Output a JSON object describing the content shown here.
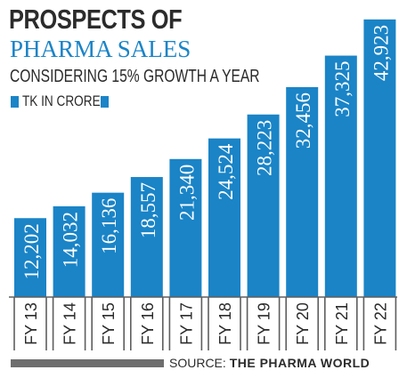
{
  "chart_data": {
    "type": "bar",
    "title": "PROSPECTS OF",
    "subtitle": "PHARMA SALES",
    "note": "CONSIDERING 15% GROWTH A YEAR",
    "legend": [
      "TK IN CRORE"
    ],
    "categories": [
      "FY 13",
      "FY 14",
      "FY 15",
      "FY 16",
      "FY 17",
      "FY 18",
      "FY 19",
      "FY 20",
      "FY 21",
      "FY 22"
    ],
    "values": [
      12202,
      14032,
      16136,
      18557,
      21340,
      24524,
      28223,
      32456,
      37325,
      42923
    ],
    "value_labels": [
      "12,202",
      "14,032",
      "16,136",
      "18,557",
      "21,340",
      "24,524",
      "28,223",
      "32,456",
      "37,325",
      "42,923"
    ],
    "ylim": [
      0,
      44000
    ],
    "grid": false,
    "bar_color": "#1a84c7",
    "axis_color": "#5e5e5e",
    "source_label": "SOURCE:",
    "source_name": "THE PHARMA WORLD"
  }
}
